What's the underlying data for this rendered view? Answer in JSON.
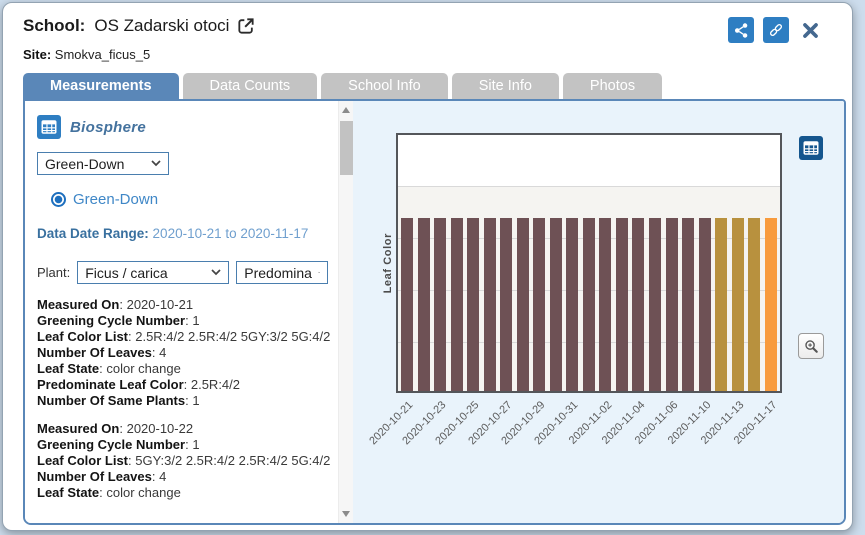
{
  "header": {
    "school_label": "School:",
    "school_name": "OS Zadarski otoci",
    "site_label": "Site:",
    "site_name": "Smokva_ficus_5",
    "icons": [
      "export-icon",
      "share-icon",
      "link-icon",
      "close-icon"
    ]
  },
  "tabs": [
    {
      "label": "Measurements",
      "active": true
    },
    {
      "label": "Data Counts",
      "active": false
    },
    {
      "label": "School Info",
      "active": false
    },
    {
      "label": "Site Info",
      "active": false
    },
    {
      "label": "Photos",
      "active": false
    }
  ],
  "sidebar": {
    "section_title": "Biosphere",
    "section_icon": "table-icon",
    "protocol_select": {
      "value": "Green-Down"
    },
    "protocol_radio": {
      "label": "Green-Down",
      "selected": true
    },
    "date_range_label": "Data Date Range:",
    "date_range_value": "2020-10-21 to 2020-11-17",
    "plant_label": "Plant:",
    "plant_select": {
      "value": "Ficus / carica"
    },
    "measure_select": {
      "value": "Predomina"
    },
    "records": [
      {
        "fields": [
          {
            "label": "Measured On",
            "value": "2020-10-21"
          },
          {
            "label": "Greening Cycle Number",
            "value": "1"
          },
          {
            "label": "Leaf Color List",
            "value": "2.5R:4/2 2.5R:4/2 5GY:3/2 5G:4/2"
          },
          {
            "label": "Number Of Leaves",
            "value": "4"
          },
          {
            "label": "Leaf State",
            "value": "color change"
          },
          {
            "label": "Predominate Leaf Color",
            "value": "2.5R:4/2"
          },
          {
            "label": "Number Of Same Plants",
            "value": "1"
          }
        ]
      },
      {
        "fields": [
          {
            "label": "Measured On",
            "value": "2020-10-22"
          },
          {
            "label": "Greening Cycle Number",
            "value": "1"
          },
          {
            "label": "Leaf Color List",
            "value": "5GY:3/2 2.5R:4/2 2.5R:4/2 5G:4/2"
          },
          {
            "label": "Number Of Leaves",
            "value": "4"
          },
          {
            "label": "Leaf State",
            "value": "color change"
          }
        ]
      }
    ]
  },
  "chart_data": {
    "type": "bar",
    "title": "",
    "ylabel": "Leaf Color",
    "xlabel": "",
    "x_tick_labels": [
      "2020-10-21",
      "2020-10-23",
      "2020-10-25",
      "2020-10-27",
      "2020-10-29",
      "2020-10-31",
      "2020-11-02",
      "2020-11-04",
      "2020-11-06",
      "2020-11-10",
      "2020-11-13",
      "2020-11-17"
    ],
    "label_every_n_bars": 2,
    "bar_count": 23,
    "bar_colors": [
      "#6E5155",
      "#6E5155",
      "#6E5155",
      "#6E5155",
      "#6E5155",
      "#6E5155",
      "#6E5155",
      "#6E5155",
      "#6E5155",
      "#6E5155",
      "#6E5155",
      "#6E5155",
      "#6E5155",
      "#6E5155",
      "#6E5155",
      "#6E5155",
      "#6E5155",
      "#6E5155",
      "#6E5155",
      "#B8913E",
      "#B8913E",
      "#B8913E",
      "#F89B3D"
    ],
    "grid": true,
    "legend": false,
    "plot_background": "#f5f4f1",
    "top_band_background": "#ffffff"
  },
  "colors": {
    "accent_blue": "#5a87b8",
    "icon_blue": "#2e7ec2",
    "right_panel_bg": "#e9f3fb",
    "bar_maroon": "#6E5155",
    "bar_gold": "#B8913E",
    "bar_orange": "#F89B3D"
  }
}
